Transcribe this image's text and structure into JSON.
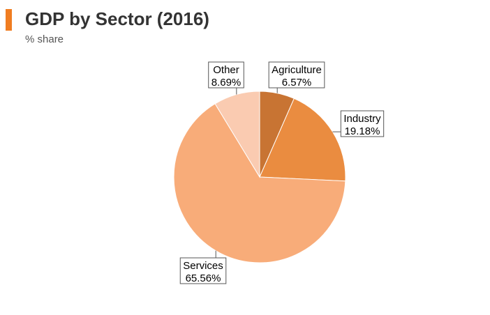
{
  "header": {
    "title": "GDP by Sector (2016)",
    "subtitle": "% share",
    "accent_color": "#F07D21"
  },
  "chart_data": {
    "type": "pie",
    "title": "GDP by Sector (2016)",
    "subtitle": "% share",
    "legend": "none",
    "slices": [
      {
        "label": "Agriculture",
        "value": 6.57,
        "display": "6.57%",
        "color": "#C87433"
      },
      {
        "label": "Industry",
        "value": 19.18,
        "display": "19.18%",
        "color": "#EA8C40"
      },
      {
        "label": "Services",
        "value": 65.56,
        "display": "65.56%",
        "color": "#F8AC79"
      },
      {
        "label": "Other",
        "value": 8.69,
        "display": "8.69%",
        "color": "#FACBB1"
      }
    ]
  }
}
